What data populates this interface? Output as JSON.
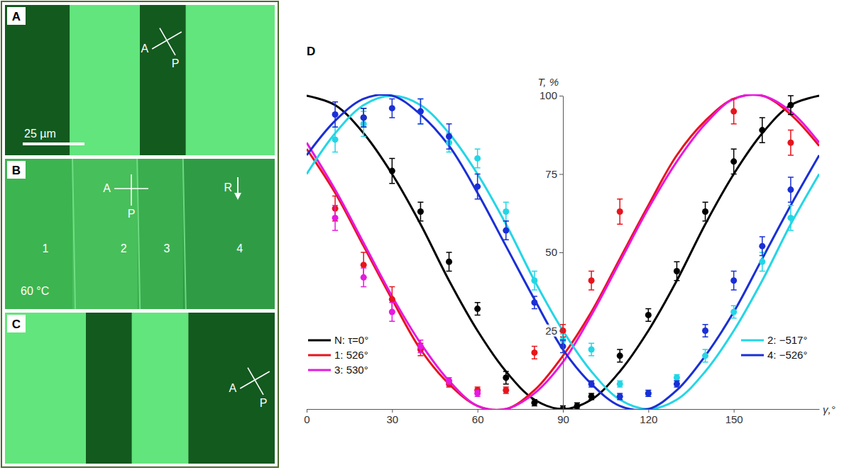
{
  "micrographs": [
    {
      "label": "A",
      "analyzer": "A",
      "polarizer": "P",
      "scale_bar": "25 µm"
    },
    {
      "label": "B",
      "analyzer": "A",
      "polarizer": "P",
      "rubbing": "R",
      "domains": [
        "1",
        "2",
        "3",
        "4"
      ],
      "temperature": "60 °C"
    },
    {
      "label": "C",
      "analyzer": "A",
      "polarizer": "P"
    }
  ],
  "chart_data": {
    "type": "scatter",
    "title": "D",
    "x_label": "γ,°",
    "y_label": "T, %",
    "xlim": [
      0,
      180
    ],
    "ylim": [
      0,
      100
    ],
    "xticks": [
      0,
      30,
      60,
      90,
      120,
      150
    ],
    "yticks": [
      25,
      50,
      75,
      100
    ],
    "y_axis_x": 90,
    "legend": "bottom",
    "fit_x": [
      0,
      10,
      20,
      30,
      40,
      50,
      60,
      70,
      80,
      90,
      100,
      110,
      120,
      130,
      140,
      150,
      160,
      170,
      180
    ],
    "series": [
      {
        "name": "N: τ=0°",
        "color": "#000000",
        "x": [
          20,
          30,
          40,
          50,
          60,
          70,
          80,
          90,
          95,
          100,
          110,
          120,
          130,
          140,
          150,
          160,
          170
        ],
        "values": [
          93,
          76,
          63,
          47,
          32,
          10,
          2,
          0,
          1,
          4,
          17,
          30,
          44,
          63,
          79,
          89,
          97
        ],
        "errors": [
          3,
          4,
          3,
          3,
          2,
          2,
          1,
          1,
          1,
          1,
          2,
          2,
          3,
          3,
          4,
          4,
          3
        ],
        "fit_values": [
          100,
          97,
          88,
          75,
          59,
          41,
          25,
          12,
          3,
          0,
          3,
          12,
          25,
          41,
          59,
          75,
          88,
          97,
          100
        ]
      },
      {
        "name": "1: 526°",
        "color": "#e8141c",
        "x": [
          10,
          20,
          30,
          40,
          50,
          60,
          70,
          80,
          90,
          100,
          110,
          150,
          170
        ],
        "values": [
          64,
          46,
          35,
          19,
          8,
          6,
          6,
          18,
          25,
          41,
          63,
          95,
          85
        ],
        "errors": [
          4,
          4,
          4,
          2,
          1,
          1,
          1,
          2,
          2,
          3,
          4,
          4,
          4
        ],
        "fit_values": [
          83,
          69,
          52,
          35,
          19,
          8,
          1,
          0,
          6,
          17,
          31,
          48,
          65,
          81,
          92,
          99,
          100,
          94,
          84
        ]
      },
      {
        "name": "3: 530°",
        "color": "#e619e0",
        "x": [
          10,
          20,
          30,
          40,
          50,
          60
        ],
        "values": [
          61,
          42,
          31,
          20,
          9,
          5
        ],
        "errors": [
          4,
          3,
          3,
          2,
          1,
          1
        ],
        "fit_values": [
          85,
          70,
          53,
          36,
          21,
          9,
          1,
          0,
          5,
          15,
          30,
          47,
          64,
          79,
          91,
          99,
          100,
          95,
          85
        ]
      },
      {
        "name": "2: −517°",
        "color": "#23d6e6",
        "x": [
          10,
          20,
          40,
          50,
          60,
          70,
          80,
          90,
          100,
          110,
          120,
          130,
          140,
          150,
          160,
          170
        ],
        "values": [
          86,
          91,
          95,
          85,
          80,
          63,
          41,
          22,
          19,
          8,
          5,
          10,
          17,
          31,
          47,
          61
        ],
        "errors": [
          4,
          4,
          4,
          3,
          3,
          3,
          3,
          2,
          2,
          1,
          1,
          1,
          2,
          2,
          3,
          4
        ],
        "fit_values": [
          75,
          88,
          97,
          100,
          97,
          88,
          75,
          59,
          41,
          25,
          12,
          3,
          0,
          3,
          12,
          25,
          41,
          59,
          75
        ]
      },
      {
        "name": "4: −526°",
        "color": "#1a2fd6",
        "x": [
          10,
          20,
          30,
          40,
          50,
          60,
          70,
          80,
          90,
          100,
          110,
          120,
          130,
          140,
          150,
          160,
          170
        ],
        "values": [
          94,
          93,
          96,
          95,
          87,
          71,
          57,
          34,
          20,
          8,
          4,
          5,
          8,
          25,
          41,
          52,
          70
        ],
        "errors": [
          4,
          3,
          3,
          4,
          4,
          4,
          3,
          2,
          2,
          1,
          1,
          1,
          1,
          2,
          3,
          3,
          4
        ],
        "fit_values": [
          81,
          92,
          99,
          100,
          94,
          84,
          69,
          52,
          35,
          19,
          8,
          1,
          0,
          6,
          17,
          31,
          48,
          65,
          81
        ]
      }
    ]
  }
}
